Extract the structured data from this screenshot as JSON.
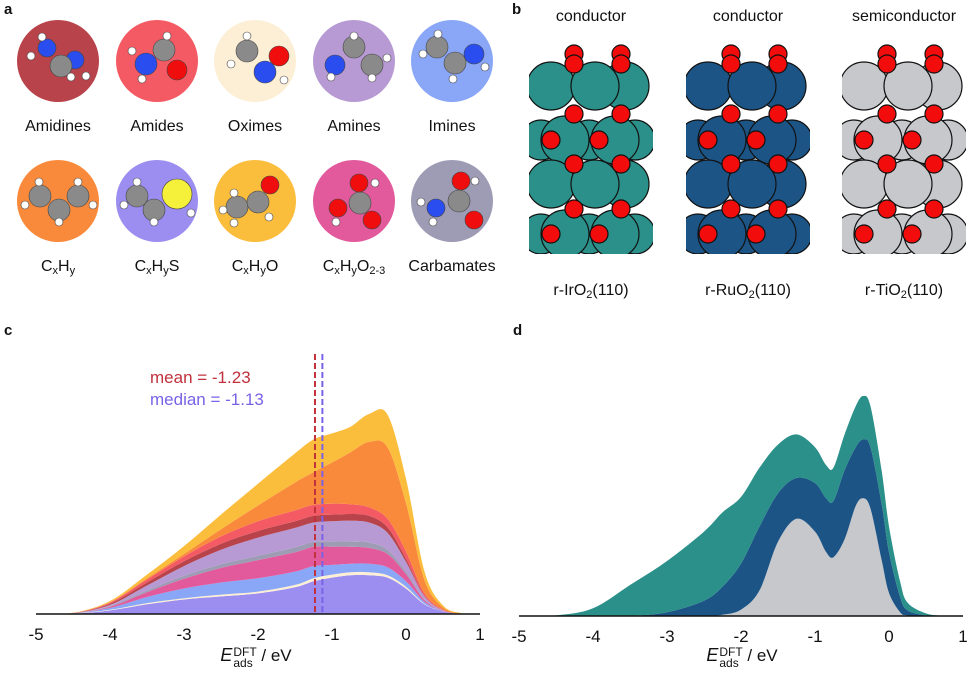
{
  "panels": {
    "a": {
      "letter": "a",
      "molecules": [
        {
          "name": "Amidines",
          "label_main": "Amidines",
          "color": "#b8434a"
        },
        {
          "name": "Amides",
          "label_main": "Amides",
          "color": "#f45a64"
        },
        {
          "name": "Oximes",
          "label_main": "Oximes",
          "color": "#fcefd6"
        },
        {
          "name": "Amines",
          "label_main": "Amines",
          "color": "#b79ad3"
        },
        {
          "name": "Imines",
          "label_main": "Imines",
          "color": "#89a6f7"
        },
        {
          "name": "CxHy",
          "label_parts": [
            "C",
            "x",
            "H",
            "y",
            ""
          ],
          "color": "#f98a3c"
        },
        {
          "name": "CxHyS",
          "label_parts": [
            "C",
            "x",
            "H",
            "y",
            "S"
          ],
          "color": "#9c8ef0"
        },
        {
          "name": "CxHyO",
          "label_parts": [
            "C",
            "x",
            "H",
            "y",
            "O"
          ],
          "color": "#fbbd3c"
        },
        {
          "name": "CxHyO2-3",
          "label_parts": [
            "C",
            "x",
            "H",
            "y",
            "O",
            "2-3"
          ],
          "color": "#e25a9c"
        },
        {
          "name": "Carbamates",
          "label_main": "Carbamates",
          "color": "#9e9bb5"
        }
      ]
    },
    "b": {
      "letter": "b",
      "slabs": [
        {
          "type": "conductor",
          "label_pre": "r-IrO",
          "label_sub": "2",
          "label_post": "(110)",
          "metal_color": "#2a9089"
        },
        {
          "type": "conductor",
          "label_pre": "r-RuO",
          "label_sub": "2",
          "label_post": "(110)",
          "metal_color": "#1c5486"
        },
        {
          "type": "semiconductor",
          "label_pre": "r-TiO",
          "label_sub": "2",
          "label_post": "(110)",
          "metal_color": "#c6c8cc"
        }
      ],
      "oxygen_color": "#f20c0c"
    },
    "c": {
      "letter": "c"
    },
    "d": {
      "letter": "d"
    }
  },
  "chart_data": [
    {
      "panel": "c",
      "type": "area",
      "stacked": true,
      "title": "",
      "xlabel": "E_ads^DFT / eV",
      "xlabel_main": "E",
      "xlabel_sup": "DFT",
      "xlabel_sub": "ads",
      "xlabel_unit": " / eV",
      "xlim": [
        -5,
        1
      ],
      "xticks": [
        "-5",
        "-4",
        "-3",
        "-2",
        "-1",
        "0",
        "1"
      ],
      "ylabel": "",
      "grid": false,
      "annotations": [
        {
          "text": "mean = -1.23",
          "x": -1.23,
          "color": "#c0313c",
          "style": "dashed"
        },
        {
          "text": "median = -1.13",
          "x": -1.13,
          "color": "#7a62e6",
          "style": "dashed"
        }
      ],
      "x": [
        -5,
        -4.5,
        -4,
        -3.5,
        -3,
        -2.5,
        -2,
        -1.5,
        -1.25,
        -1,
        -0.75,
        -0.5,
        -0.25,
        0,
        0.25,
        0.5,
        0.75,
        1
      ],
      "series": [
        {
          "name": "CxHyS",
          "color": "#9c8ef0",
          "values": [
            0,
            0.05,
            0.6,
            1.6,
            2.4,
            2.9,
            3.4,
            4.4,
            5.4,
            6.0,
            6.4,
            6.4,
            6.0,
            4.2,
            1.6,
            0.4,
            0.05,
            0
          ]
        },
        {
          "name": "Oximes",
          "color": "#fcefd6",
          "values": [
            0,
            0.01,
            0.1,
            0.2,
            0.2,
            0.3,
            0.3,
            0.4,
            0.5,
            0.5,
            0.5,
            0.5,
            0.4,
            0.3,
            0.1,
            0.02,
            0,
            0
          ]
        },
        {
          "name": "Imines",
          "color": "#89a6f7",
          "values": [
            0,
            0.02,
            0.3,
            1.0,
            1.6,
            2.0,
            2.2,
            2.2,
            2.0,
            1.6,
            1.4,
            1.4,
            1.3,
            0.9,
            0.3,
            0.05,
            0,
            0
          ]
        },
        {
          "name": "CxHyO2-3",
          "color": "#e25a9c",
          "values": [
            0,
            0.01,
            0.2,
            0.8,
            1.6,
            2.4,
            3.0,
            3.2,
            3.2,
            3.0,
            2.8,
            2.6,
            2.2,
            1.2,
            0.3,
            0.05,
            0,
            0
          ]
        },
        {
          "name": "Carbamates",
          "color": "#9e9bb5",
          "values": [
            0,
            0.01,
            0.1,
            0.3,
            0.5,
            0.6,
            0.7,
            0.8,
            0.8,
            0.9,
            0.9,
            0.9,
            0.7,
            0.4,
            0.1,
            0,
            0,
            0
          ]
        },
        {
          "name": "Amines",
          "color": "#b79ad3",
          "values": [
            0,
            0.02,
            0.2,
            0.8,
            1.6,
            2.4,
            3.0,
            3.2,
            3.2,
            3.3,
            3.4,
            3.3,
            2.8,
            1.6,
            0.5,
            0.1,
            0,
            0
          ]
        },
        {
          "name": "Amidines",
          "color": "#b8434a",
          "values": [
            0,
            0.02,
            0.2,
            0.5,
            0.8,
            1.0,
            1.1,
            1.1,
            1.1,
            1.1,
            1.1,
            1.1,
            0.9,
            0.5,
            0.1,
            0,
            0,
            0
          ]
        },
        {
          "name": "Amides",
          "color": "#f45a64",
          "values": [
            0,
            0.02,
            0.2,
            0.5,
            0.8,
            1.2,
            1.6,
            1.8,
            1.8,
            1.8,
            1.6,
            1.4,
            1.4,
            1.2,
            0.4,
            0.1,
            0,
            0
          ]
        },
        {
          "name": "CxHy",
          "color": "#f98a3c",
          "values": [
            0,
            0.01,
            0.05,
            0.2,
            0.4,
            1.2,
            2.6,
            4.6,
            5.4,
            6.8,
            8.6,
            10.8,
            11.8,
            8.0,
            2.2,
            0.4,
            0.05,
            0
          ]
        },
        {
          "name": "CxHyO",
          "color": "#fbbd3c",
          "values": [
            0,
            0.02,
            0.2,
            0.6,
            1.3,
            2.4,
            3.6,
            4.8,
            5.4,
            4.8,
            4.2,
            4.6,
            5.4,
            4.0,
            1.4,
            0.3,
            0.05,
            0
          ]
        }
      ]
    },
    {
      "panel": "d",
      "type": "area",
      "stacked": true,
      "title": "",
      "xlabel": "E_ads^DFT / eV",
      "xlabel_main": "E",
      "xlabel_sup": "DFT",
      "xlabel_sub": "ads",
      "xlabel_unit": " / eV",
      "xlim": [
        -5,
        1
      ],
      "xticks": [
        "-5",
        "-4",
        "-3",
        "-2",
        "-1",
        "0",
        "1"
      ],
      "ylabel": "",
      "grid": false,
      "x": [
        -5,
        -4.5,
        -4,
        -3.5,
        -3,
        -2.5,
        -2.25,
        -2,
        -1.75,
        -1.5,
        -1.25,
        -1,
        -0.85,
        -0.75,
        -0.6,
        -0.45,
        -0.35,
        -0.25,
        -0.1,
        0,
        0.15,
        0.25,
        0.5,
        0.75,
        1
      ],
      "series": [
        {
          "name": "r-TiO2(110)",
          "color": "#c6c8cc",
          "values": [
            0,
            0,
            0,
            0,
            0,
            0,
            0.1,
            0.5,
            2.0,
            5.8,
            7.6,
            6.6,
            5.0,
            4.6,
            6.0,
            8.6,
            9.2,
            8.4,
            4.4,
            1.8,
            0.3,
            0.05,
            0,
            0,
            0
          ]
        },
        {
          "name": "r-RuO2(110)",
          "color": "#1c5486",
          "values": [
            0,
            0,
            0,
            0.02,
            0.3,
            1.2,
            2.2,
            3.6,
            5.0,
            3.8,
            3.2,
            3.8,
            4.2,
            4.4,
            5.4,
            4.6,
            4.6,
            4.8,
            4.4,
            3.2,
            1.2,
            0.4,
            0.05,
            0,
            0
          ]
        },
        {
          "name": "r-IrO2(110)",
          "color": "#2a9089",
          "values": [
            0,
            0.05,
            0.6,
            2.4,
            4.0,
            5.4,
            5.8,
            5.2,
            4.6,
            3.8,
            3.4,
            2.8,
            2.6,
            2.6,
            2.8,
            3.2,
            3.4,
            3.2,
            2.6,
            2.0,
            1.2,
            0.6,
            0.15,
            0.02,
            0
          ]
        }
      ]
    }
  ]
}
